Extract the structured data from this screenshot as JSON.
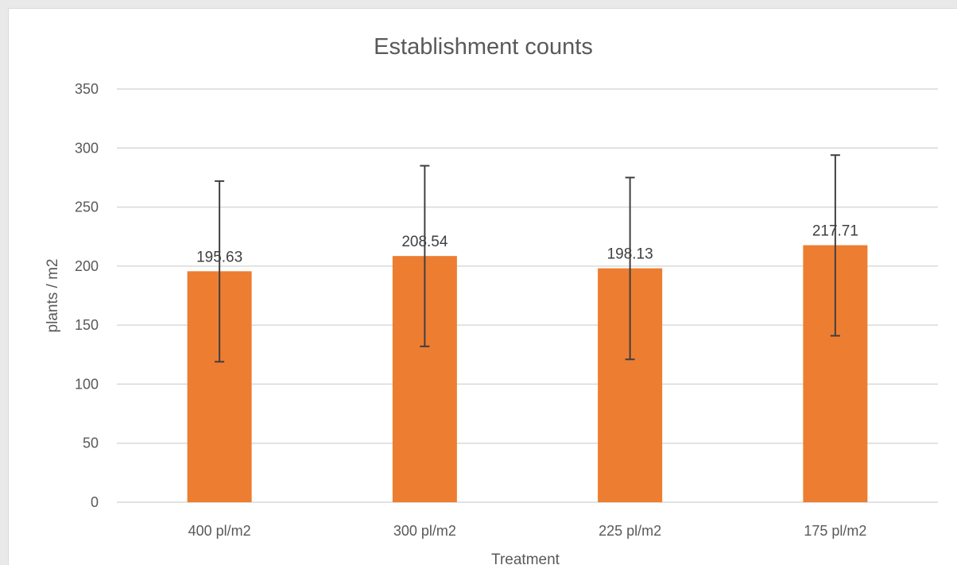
{
  "chart_data": {
    "type": "bar",
    "title": "Establishment counts",
    "xlabel": "Treatment",
    "ylabel": "plants / m2",
    "categories": [
      "400 pl/m2",
      "300 pl/m2",
      "225 pl/m2",
      "175 pl/m2"
    ],
    "values": [
      195.63,
      208.54,
      198.13,
      217.71
    ],
    "data_labels": [
      "195.63",
      "208.54",
      "198.13",
      "217.71"
    ],
    "error_bars": [
      {
        "low": 119,
        "high": 272
      },
      {
        "low": 132,
        "high": 285
      },
      {
        "low": 121,
        "high": 275
      },
      {
        "low": 141,
        "high": 294
      }
    ],
    "ylim": [
      0,
      350
    ],
    "yticks": [
      0,
      50,
      100,
      150,
      200,
      250,
      300,
      350
    ],
    "ytick_labels": [
      "0",
      "50",
      "100",
      "150",
      "200",
      "250",
      "300",
      "350"
    ],
    "grid": true,
    "legend": "none",
    "colors": {
      "bar": "#ed7d31",
      "grid": "#d9d9d9",
      "error_bar": "#404040",
      "text": "#595959"
    }
  }
}
